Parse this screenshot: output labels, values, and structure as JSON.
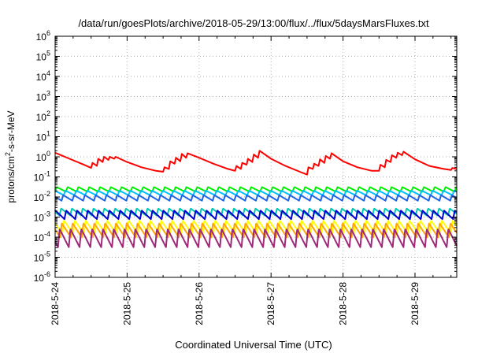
{
  "chart_data": {
    "type": "line",
    "title": "/data/run/goesPlots/archive/2018-05-29/13:00/flux/../flux/5daysMarsFluxes.txt",
    "xlabel": "Coordinated Universal Time (UTC)",
    "ylabel": "protons/cm²-s-sr-MeV",
    "y_scale": "log",
    "ylim": [
      1e-06,
      1000000.0
    ],
    "xlim_days": [
      0,
      5.58
    ],
    "y_ticks": [
      {
        "base": "10",
        "exp": "-6"
      },
      {
        "base": "10",
        "exp": "-5"
      },
      {
        "base": "10",
        "exp": "-4"
      },
      {
        "base": "10",
        "exp": "-3"
      },
      {
        "base": "10",
        "exp": "-2"
      },
      {
        "base": "10",
        "exp": "-1"
      },
      {
        "base": "10",
        "exp": "0"
      },
      {
        "base": "10",
        "exp": "1"
      },
      {
        "base": "10",
        "exp": "2"
      },
      {
        "base": "10",
        "exp": "3"
      },
      {
        "base": "10",
        "exp": "4"
      },
      {
        "base": "10",
        "exp": "5"
      },
      {
        "base": "10",
        "exp": "6"
      }
    ],
    "x_ticks": [
      "2018-5-24",
      "2018-5-25",
      "2018-5-26",
      "2018-5-27",
      "2018-5-28",
      "2018-5-29"
    ],
    "grid": true,
    "legend": "none",
    "series": [
      {
        "color": "#ff0000",
        "x": [
          0,
          0.2,
          0.4,
          0.5,
          0.52,
          0.58,
          0.6,
          0.66,
          0.68,
          0.74,
          0.76,
          0.82,
          0.84,
          1.0,
          1.2,
          1.4,
          1.5,
          1.52,
          1.58,
          1.6,
          1.66,
          1.68,
          1.74,
          1.76,
          1.82,
          1.84,
          2.0,
          2.2,
          2.4,
          2.5,
          2.52,
          2.58,
          2.6,
          2.66,
          2.68,
          2.74,
          2.76,
          2.82,
          2.84,
          3.0,
          3.2,
          3.4,
          3.5,
          3.52,
          3.58,
          3.6,
          3.66,
          3.68,
          3.74,
          3.76,
          3.82,
          3.84,
          4.0,
          4.2,
          4.4,
          4.5,
          4.52,
          4.58,
          4.6,
          4.66,
          4.68,
          4.74,
          4.76,
          4.82,
          4.84,
          5.0,
          5.2,
          5.4,
          5.5,
          5.52,
          5.58
        ],
        "y": [
          1.6,
          0.8,
          0.4,
          0.28,
          0.5,
          0.35,
          0.8,
          0.55,
          1.0,
          0.7,
          1.0,
          0.8,
          1.0,
          0.55,
          0.3,
          0.2,
          0.18,
          0.3,
          0.25,
          0.6,
          0.45,
          0.9,
          0.6,
          1.4,
          0.9,
          1.5,
          0.9,
          0.45,
          0.25,
          0.2,
          0.35,
          0.25,
          0.5,
          0.4,
          0.8,
          0.55,
          1.3,
          0.9,
          2.0,
          0.8,
          0.35,
          0.18,
          0.13,
          0.3,
          0.25,
          0.45,
          0.35,
          0.75,
          0.5,
          1.1,
          0.8,
          1.5,
          0.6,
          0.3,
          0.2,
          0.2,
          0.4,
          0.3,
          0.7,
          0.55,
          1.2,
          0.9,
          1.6,
          1.2,
          1.8,
          0.75,
          0.35,
          0.25,
          0.22,
          0.28,
          0.24
        ]
      },
      {
        "color": "#00ee00",
        "base": 0.024,
        "ratio": 1.7,
        "period": 0.15,
        "phase": 0.0
      },
      {
        "color": "#00c0ff",
        "base": 0.016,
        "ratio": 1.7,
        "period": 0.15,
        "phase": 0.03
      },
      {
        "color": "#1e64e6",
        "base": 0.009,
        "ratio": 1.9,
        "period": 0.15,
        "phase": 0.06
      },
      {
        "color": "#00c8b4",
        "base": 0.0018,
        "ratio": 2.2,
        "period": 0.15,
        "phase": 0.09
      },
      {
        "color": "#0000cd",
        "base": 0.0013,
        "ratio": 2.7,
        "period": 0.15,
        "phase": 0.02
      },
      {
        "color": "#ffff00",
        "base": 0.00032,
        "ratio": 4.5,
        "period": 0.15,
        "phase": 0.05
      },
      {
        "color": "#ffa500",
        "base": 0.00022,
        "ratio": 5.0,
        "period": 0.15,
        "phase": 0.08
      },
      {
        "color": "#a0287a",
        "base": 9e-05,
        "ratio": 8.0,
        "period": 0.15,
        "phase": 0.11
      }
    ]
  }
}
